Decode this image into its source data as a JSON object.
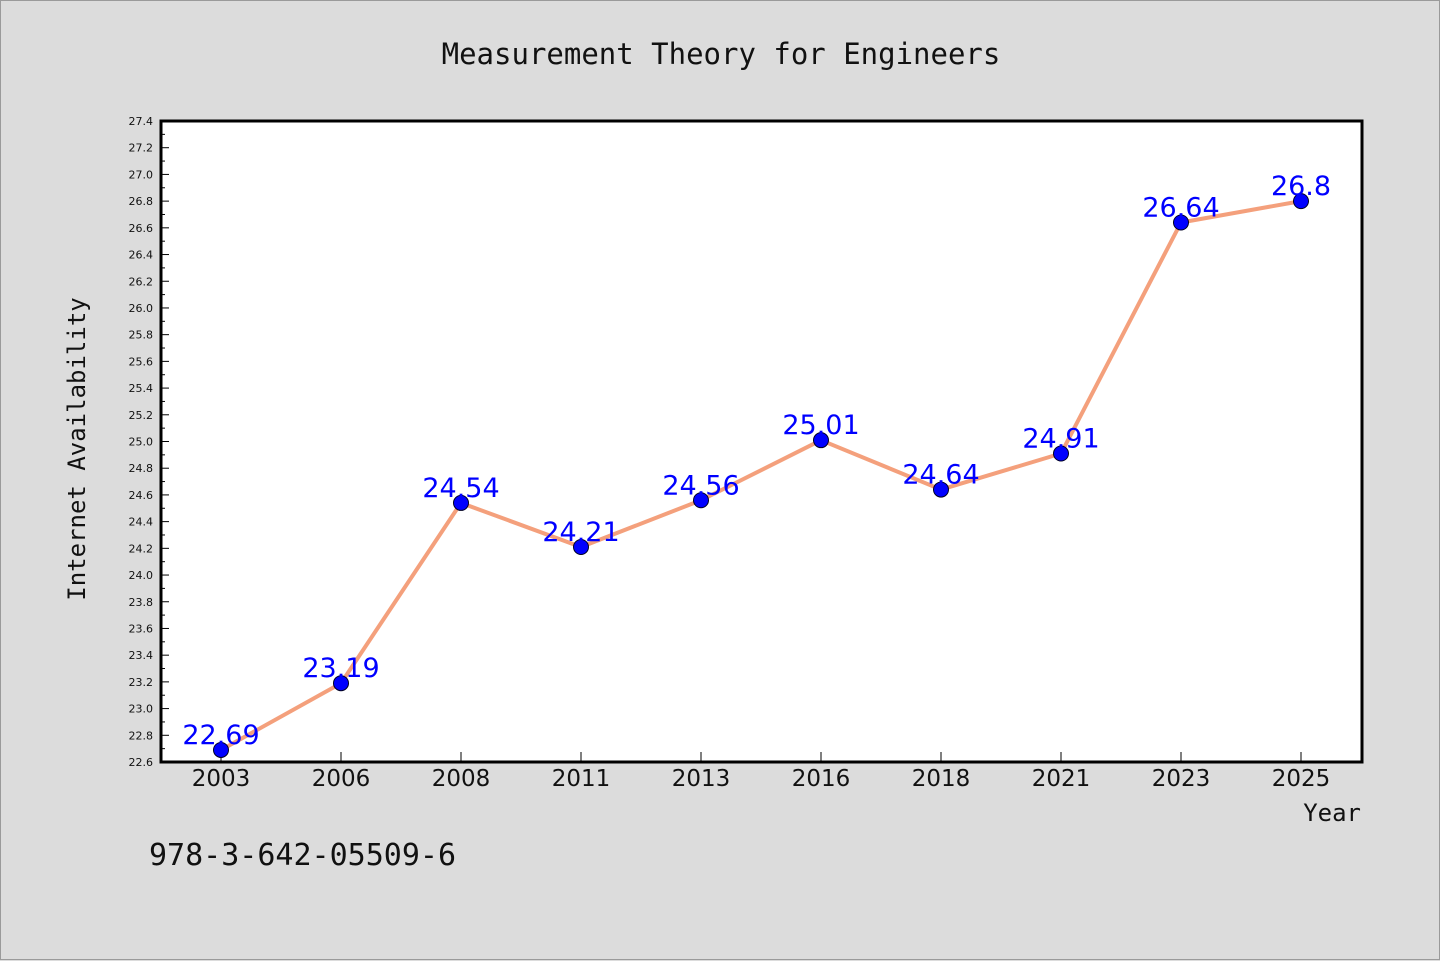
{
  "chart_data": {
    "type": "line",
    "title": "Measurement Theory for Engineers",
    "xlabel": "Year",
    "ylabel": "Internet Availability",
    "categories": [
      "2003",
      "2006",
      "2008",
      "2011",
      "2013",
      "2016",
      "2018",
      "2021",
      "2023",
      "2025"
    ],
    "series": [
      {
        "values": [
          22.69,
          23.19,
          24.54,
          24.21,
          24.56,
          25.01,
          24.64,
          24.91,
          26.64,
          26.8
        ],
        "labels": [
          "22.69",
          "23.19",
          "24.54",
          "24.21",
          "24.56",
          "25.01",
          "24.64",
          "24.91",
          "26.64",
          "26.8"
        ],
        "line_color": "#f4a07c",
        "marker_color": "#0000ff"
      }
    ],
    "ylim": [
      22.6,
      27.4
    ],
    "yticks": [
      "22.6",
      "22.8",
      "23.0",
      "23.2",
      "23.4",
      "23.6",
      "23.8",
      "24.0",
      "24.2",
      "24.4",
      "24.6",
      "24.8",
      "25.0",
      "25.2",
      "25.4",
      "25.6",
      "25.8",
      "26.0",
      "26.2",
      "26.4",
      "26.6",
      "26.8",
      "27.0",
      "27.2",
      "27.4"
    ],
    "grid": false,
    "legend": "none",
    "label_color": "#0000ff"
  },
  "footer": {
    "isbn": "978-3-642-05509-6"
  }
}
